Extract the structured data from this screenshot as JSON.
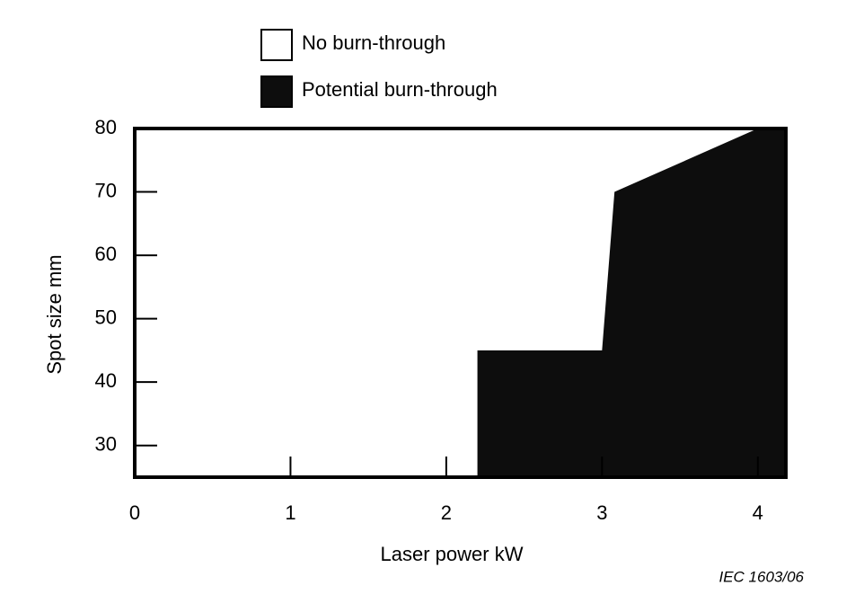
{
  "chart_data": {
    "type": "area",
    "x_label": "Laser power   kW",
    "y_label": "Spot size   mm",
    "annotation": "IEC   1603/06",
    "background": {
      "name": "No burn-through",
      "color": "#ffffff"
    },
    "series": [
      {
        "name": "Potential burn-through",
        "color": "#0d0d0d",
        "x": [
          2.2,
          2.2,
          3.0,
          3.08,
          4.0,
          4.18
        ],
        "values": [
          25,
          45,
          45,
          70,
          80,
          80
        ]
      }
    ],
    "xlim": [
      0,
      4.18
    ],
    "xticks": [
      0,
      1,
      2,
      3,
      4
    ],
    "ylim": [
      25,
      80
    ],
    "yticks": [
      30,
      40,
      50,
      60,
      70,
      80
    ]
  }
}
